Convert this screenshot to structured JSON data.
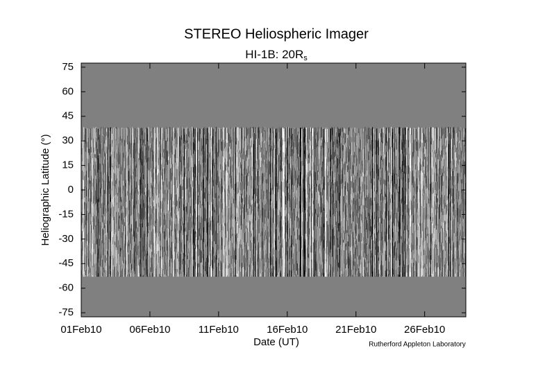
{
  "chart_data": {
    "type": "image",
    "title": "STEREO Heliospheric Imager",
    "subtitle": {
      "text": "HI-1B: 20R",
      "subscript": "s"
    },
    "xlabel": "Date (UT)",
    "ylabel": "Heliographic Latitude (°)",
    "credit": "Rutherford Appleton Laboratory",
    "xlim": [
      "2010-02-01",
      "2010-03-01"
    ],
    "xticks": [
      {
        "value": "2010-02-01",
        "label": "01Feb10"
      },
      {
        "value": "2010-02-06",
        "label": "06Feb10"
      },
      {
        "value": "2010-02-11",
        "label": "11Feb10"
      },
      {
        "value": "2010-02-16",
        "label": "16Feb10"
      },
      {
        "value": "2010-02-21",
        "label": "21Feb10"
      },
      {
        "value": "2010-02-26",
        "label": "26Feb10"
      }
    ],
    "ylim": [
      -77.5,
      77.5
    ],
    "yticks": [
      75,
      60,
      45,
      30,
      15,
      0,
      -15,
      -30,
      -45,
      -60,
      -75
    ],
    "image_ylim": [
      -53,
      38.5
    ],
    "background_color": "#808080"
  }
}
